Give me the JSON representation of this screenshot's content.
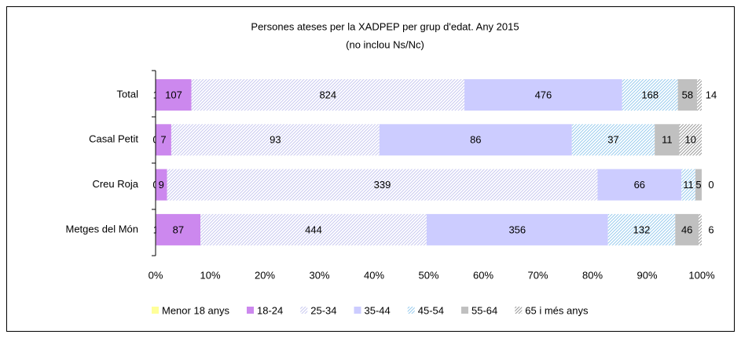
{
  "chart_data": {
    "type": "stacked-bar-100",
    "title": "Persones ateses per la XADPEP per grup d'edat. Any 2015",
    "subtitle": "(no inclou Ns/Nc)",
    "categories": [
      "Total",
      "Casal Petit",
      "Creu Roja",
      "Metges del Món"
    ],
    "series": [
      {
        "name": "Menor 18 anys",
        "color": "#ffff99",
        "hatched": false,
        "values": [
          1,
          0,
          0,
          1
        ]
      },
      {
        "name": "18-24",
        "color": "#cc88ee",
        "hatched": false,
        "values": [
          107,
          7,
          9,
          87
        ]
      },
      {
        "name": "25-34",
        "color": "#c8c8f0",
        "hatched": true,
        "values": [
          824,
          93,
          339,
          444
        ]
      },
      {
        "name": "35-44",
        "color": "#ccccff",
        "hatched": false,
        "values": [
          476,
          86,
          66,
          356
        ]
      },
      {
        "name": "45-54",
        "color": "#99ccee",
        "hatched": true,
        "values": [
          168,
          37,
          11,
          132
        ]
      },
      {
        "name": "55-64",
        "color": "#c0c0c0",
        "hatched": false,
        "values": [
          58,
          11,
          5,
          46
        ]
      },
      {
        "name": "65 i més anys",
        "color": "#999999",
        "hatched": true,
        "values": [
          14,
          10,
          0,
          6
        ]
      }
    ],
    "xlim": [
      0,
      100
    ],
    "xticks": [
      {
        "value": 0,
        "label": "0%"
      },
      {
        "value": 10,
        "label": "10%"
      },
      {
        "value": 20,
        "label": "20%"
      },
      {
        "value": 30,
        "label": "30%"
      },
      {
        "value": 40,
        "label": "40%"
      },
      {
        "value": 50,
        "label": "50%"
      },
      {
        "value": 60,
        "label": "60%"
      },
      {
        "value": 70,
        "label": "70%"
      },
      {
        "value": 80,
        "label": "80%"
      },
      {
        "value": 90,
        "label": "90%"
      },
      {
        "value": 100,
        "label": "100%"
      }
    ],
    "legend": "bottom"
  }
}
